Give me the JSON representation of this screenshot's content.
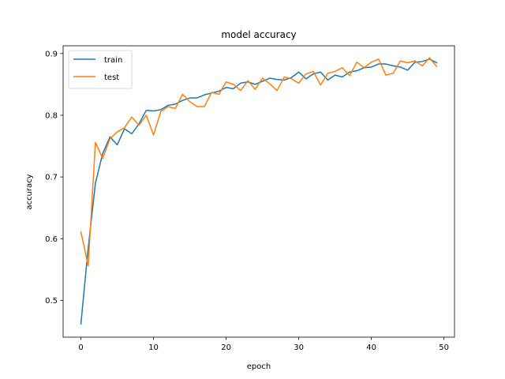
{
  "chart_data": {
    "type": "line",
    "title": "model accuracy",
    "xlabel": "epoch",
    "ylabel": "accuracy",
    "xlim": [
      -2.45,
      51.45
    ],
    "ylim": [
      0.4405,
      0.9125
    ],
    "xticks": [
      0,
      10,
      20,
      30,
      40,
      50
    ],
    "xtick_labels": [
      "0",
      "10",
      "20",
      "30",
      "40",
      "50"
    ],
    "yticks": [
      0.5,
      0.6,
      0.7,
      0.8,
      0.9
    ],
    "ytick_labels": [
      "0.5",
      "0.6",
      "0.7",
      "0.8",
      "0.9"
    ],
    "grid": false,
    "legend_position": "top-left",
    "x": [
      0,
      1,
      2,
      3,
      4,
      5,
      6,
      7,
      8,
      9,
      10,
      11,
      12,
      13,
      14,
      15,
      16,
      17,
      18,
      19,
      20,
      21,
      22,
      23,
      24,
      25,
      26,
      27,
      28,
      29,
      30,
      31,
      32,
      33,
      34,
      35,
      36,
      37,
      38,
      39,
      40,
      41,
      42,
      43,
      44,
      45,
      46,
      47,
      48,
      49
    ],
    "series": [
      {
        "name": "train",
        "color": "#1f77b4",
        "values": [
          0.462,
          0.585,
          0.69,
          0.738,
          0.765,
          0.752,
          0.778,
          0.77,
          0.786,
          0.808,
          0.807,
          0.809,
          0.816,
          0.818,
          0.824,
          0.828,
          0.828,
          0.833,
          0.836,
          0.839,
          0.845,
          0.843,
          0.852,
          0.854,
          0.85,
          0.855,
          0.86,
          0.858,
          0.857,
          0.861,
          0.87,
          0.859,
          0.867,
          0.87,
          0.857,
          0.865,
          0.862,
          0.87,
          0.872,
          0.877,
          0.878,
          0.883,
          0.883,
          0.88,
          0.878,
          0.873,
          0.886,
          0.887,
          0.891,
          0.885
        ]
      },
      {
        "name": "test",
        "color": "#ff7f0e",
        "values": [
          0.611,
          0.556,
          0.756,
          0.73,
          0.762,
          0.773,
          0.78,
          0.797,
          0.784,
          0.8,
          0.768,
          0.806,
          0.814,
          0.811,
          0.834,
          0.822,
          0.814,
          0.814,
          0.837,
          0.834,
          0.854,
          0.85,
          0.84,
          0.856,
          0.842,
          0.86,
          0.851,
          0.84,
          0.862,
          0.859,
          0.852,
          0.867,
          0.871,
          0.849,
          0.868,
          0.871,
          0.877,
          0.864,
          0.886,
          0.877,
          0.886,
          0.891,
          0.865,
          0.868,
          0.888,
          0.885,
          0.888,
          0.88,
          0.893,
          0.879
        ]
      }
    ]
  }
}
